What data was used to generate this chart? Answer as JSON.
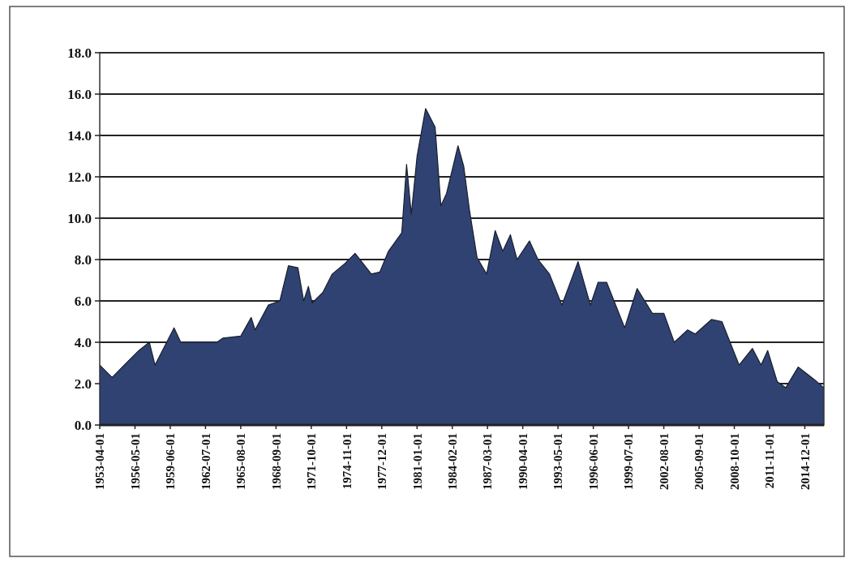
{
  "chart_data": {
    "type": "area",
    "x": [
      "1953-04",
      "1954-05",
      "1955-08",
      "1956-09",
      "1957-08",
      "1958-02",
      "1959-10",
      "1960-05",
      "1963-07",
      "1964-01",
      "1965-08",
      "1966-07",
      "1966-11",
      "1968-01",
      "1969-01",
      "1969-10",
      "1970-08",
      "1971-02",
      "1971-07",
      "1971-11",
      "1972-10",
      "1973-08",
      "1974-09",
      "1975-08",
      "1977-01",
      "1977-10",
      "1978-07",
      "1979-09",
      "1980-02",
      "1980-07",
      "1981-01",
      "1981-10",
      "1982-08",
      "1983-02",
      "1983-08",
      "1984-08",
      "1985-02",
      "1985-08",
      "1986-04",
      "1987-02",
      "1987-11",
      "1988-07",
      "1989-03",
      "1989-10",
      "1990-11",
      "1991-08",
      "1992-08",
      "1993-09",
      "1995-02",
      "1996-03",
      "1996-11",
      "1997-08",
      "1999-03",
      "2000-04",
      "2001-08",
      "2002-08",
      "2003-07",
      "2004-09",
      "2005-05",
      "2006-10",
      "2007-09",
      "2009-03",
      "2010-05",
      "2011-02",
      "2011-09",
      "2012-07",
      "2013-04",
      "2014-05",
      "2015-10",
      "2016-08"
    ],
    "series": [
      {
        "color": "#2f4272",
        "values": [
          2.9,
          2.3,
          3.0,
          3.6,
          4.0,
          2.9,
          4.7,
          4.0,
          4.0,
          4.2,
          4.3,
          5.2,
          4.6,
          5.8,
          6.0,
          7.7,
          7.6,
          6.0,
          6.7,
          5.9,
          6.4,
          7.3,
          7.8,
          8.3,
          7.3,
          7.4,
          8.4,
          9.3,
          12.6,
          10.2,
          13.0,
          15.3,
          14.4,
          10.6,
          11.2,
          13.5,
          12.5,
          10.4,
          8.1,
          7.3,
          9.4,
          8.4,
          9.2,
          8.0,
          8.9,
          8.0,
          7.3,
          5.8,
          7.9,
          5.8,
          6.9,
          6.9,
          4.7,
          6.6,
          5.4,
          5.4,
          4.0,
          4.6,
          4.4,
          5.1,
          5.0,
          2.9,
          3.7,
          2.9,
          3.6,
          2.1,
          1.8,
          2.8,
          2.2,
          1.8
        ]
      }
    ],
    "xlim": [
      "1953-04",
      "2016-08"
    ],
    "xticks": [
      "1953-04-01",
      "1956-05-01",
      "1959-06-01",
      "1962-07-01",
      "1965-08-01",
      "1968-09-01",
      "1971-10-01",
      "1974-11-01",
      "1977-12-01",
      "1981-01-01",
      "1984-02-01",
      "1987-03-01",
      "1990-04-01",
      "1993-05-01",
      "1996-06-01",
      "1999-07-01",
      "2002-08-01",
      "2005-09-01",
      "2008-10-01",
      "2011-11-01",
      "2014-12-01"
    ],
    "ylim": [
      0,
      18
    ],
    "yticks": [
      {
        "value": 0,
        "label": "0.0"
      },
      {
        "value": 2,
        "label": "2.0"
      },
      {
        "value": 4,
        "label": "4.0"
      },
      {
        "value": 6,
        "label": "6.0"
      },
      {
        "value": 8,
        "label": "8.0"
      },
      {
        "value": 10,
        "label": "10.0"
      },
      {
        "value": 12,
        "label": "12.0"
      },
      {
        "value": 14,
        "label": "14.0"
      },
      {
        "value": 16,
        "label": "16.0"
      },
      {
        "value": 18,
        "label": "18.0"
      }
    ],
    "grid": "y"
  }
}
